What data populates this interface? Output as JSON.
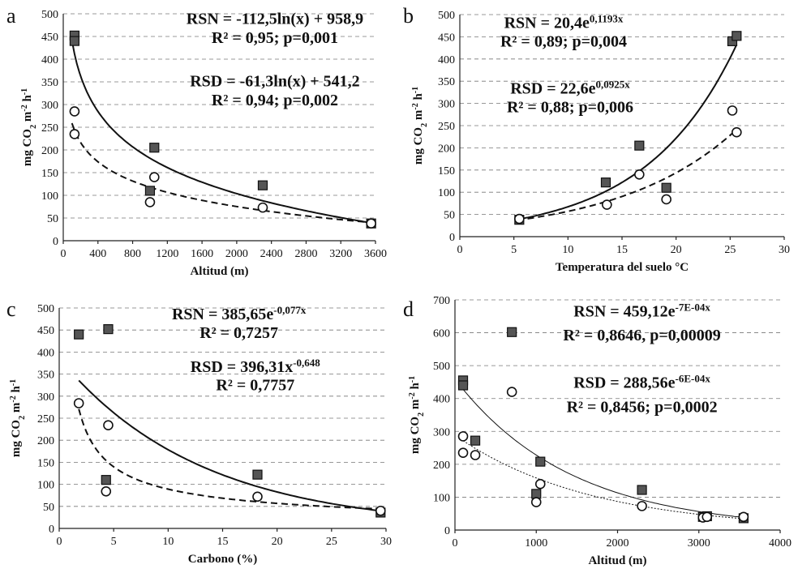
{
  "chart_data": [
    {
      "id": "a",
      "type": "scatter",
      "panel_letter": "a",
      "xlabel": "Altitud (m)",
      "ylabel_html": "mg CO<tspan baseline-shift='sub' font-size='10'>2</tspan> m<tspan baseline-shift='super' font-size='10'>-2</tspan> h<tspan baseline-shift='super' font-size='10'>-1</tspan>",
      "ylabel": "mg CO2 m-2 h-1",
      "xlim": [
        0,
        3600
      ],
      "ylim": [
        0,
        500
      ],
      "xticks": [
        0,
        400,
        800,
        1200,
        1600,
        2000,
        2400,
        2800,
        3200,
        3600
      ],
      "yticks": [
        0,
        50,
        100,
        150,
        200,
        250,
        300,
        350,
        400,
        450,
        500
      ],
      "series": [
        {
          "name": "RSN",
          "marker": "square",
          "points": [
            [
              130,
              452
            ],
            [
              130,
              440
            ],
            [
              1050,
              205
            ],
            [
              1000,
              110
            ],
            [
              2300,
              122
            ],
            [
              3550,
              38
            ]
          ],
          "fit": {
            "kind": "log",
            "a": -112.5,
            "b": 958.9,
            "range": [
              100,
              3550
            ],
            "style": "solid"
          }
        },
        {
          "name": "RSD",
          "marker": "circle",
          "points": [
            [
              130,
              285
            ],
            [
              130,
              235
            ],
            [
              1050,
              140
            ],
            [
              1000,
              85
            ],
            [
              2300,
              73
            ],
            [
              3550,
              38
            ]
          ],
          "fit": {
            "kind": "log",
            "a": -61.3,
            "b": 541.2,
            "range": [
              100,
              3550
            ],
            "style": "dashed"
          }
        }
      ],
      "annotations": [
        {
          "text": "RSN = -112,5ln(x) + 958,9",
          "x": 2440,
          "y": 478
        },
        {
          "text": "R² = 0,95; p=0,001",
          "x": 2440,
          "y": 436
        },
        {
          "text": "RSD = -61,3ln(x) + 541,2",
          "x": 2440,
          "y": 340
        },
        {
          "text": "R² = 0,94; p=0,002",
          "x": 2440,
          "y": 298
        }
      ]
    },
    {
      "id": "b",
      "type": "scatter",
      "panel_letter": "b",
      "xlabel": "Temperatura del suelo °C",
      "ylabel_html": "mg CO<tspan baseline-shift='sub' font-size='10'>2</tspan> m<tspan baseline-shift='super' font-size='10'>-2</tspan> h<tspan baseline-shift='super' font-size='10'>-1</tspan>",
      "ylabel": "mg CO2 m-2 h-1",
      "xlim": [
        0,
        30
      ],
      "ylim": [
        0,
        500
      ],
      "xticks": [
        0,
        5,
        10,
        15,
        20,
        25,
        30
      ],
      "yticks": [
        0,
        50,
        100,
        150,
        200,
        250,
        300,
        350,
        400,
        450,
        500
      ],
      "series": [
        {
          "name": "RSN",
          "marker": "square",
          "points": [
            [
              5.5,
              38
            ],
            [
              13.5,
              122
            ],
            [
              16.6,
              205
            ],
            [
              19.1,
              110
            ],
            [
              25.2,
              440
            ],
            [
              25.6,
              452
            ]
          ],
          "fit": {
            "kind": "exp",
            "a": 20.4,
            "b": 0.1193,
            "range": [
              5.3,
              25.6
            ],
            "style": "solid"
          }
        },
        {
          "name": "RSD",
          "marker": "circle",
          "points": [
            [
              5.5,
              40
            ],
            [
              13.6,
              72
            ],
            [
              16.6,
              140
            ],
            [
              19.1,
              84
            ],
            [
              25.2,
              284
            ],
            [
              25.6,
              235
            ]
          ],
          "fit": {
            "kind": "exp",
            "a": 22.6,
            "b": 0.0925,
            "range": [
              5.3,
              25.6
            ],
            "style": "dashed"
          }
        }
      ],
      "annotations": [
        {
          "text": "RSN = 20,4e",
          "sup": "0,1193x",
          "x": 9.6,
          "y": 470
        },
        {
          "text": "R² = 0,89; p=0,004",
          "x": 9.6,
          "y": 428
        },
        {
          "text": "RSD = 22,6e",
          "sup": "0,0925x",
          "x": 10.2,
          "y": 322
        },
        {
          "text": "R² = 0,88; p=0,006",
          "x": 10.2,
          "y": 280
        }
      ]
    },
    {
      "id": "c",
      "type": "scatter",
      "panel_letter": "c",
      "xlabel": "Carbono (%)",
      "ylabel_html": "mg CO<tspan baseline-shift='sub' font-size='10'>2</tspan> m<tspan baseline-shift='super' font-size='10'>-2</tspan> h<tspan baseline-shift='super' font-size='10'>-1</tspan>",
      "ylabel": "mg CO2 m-2 h-1",
      "xlim": [
        0,
        30
      ],
      "ylim": [
        0,
        500
      ],
      "xticks": [
        0,
        5,
        10,
        15,
        20,
        25,
        30
      ],
      "yticks": [
        0,
        50,
        100,
        150,
        200,
        250,
        300,
        350,
        400,
        450,
        500
      ],
      "series": [
        {
          "name": "RSN",
          "marker": "square",
          "points": [
            [
              1.8,
              440
            ],
            [
              4.5,
              452
            ],
            [
              4.3,
              110
            ],
            [
              18.2,
              122
            ],
            [
              29.5,
              36
            ]
          ],
          "fit": {
            "kind": "exp",
            "a": 385.65,
            "b": -0.077,
            "range": [
              1.8,
              29.5
            ],
            "style": "solid"
          }
        },
        {
          "name": "RSD",
          "marker": "circle",
          "points": [
            [
              1.8,
              284
            ],
            [
              4.5,
              234
            ],
            [
              4.3,
              84
            ],
            [
              18.2,
              72
            ],
            [
              29.5,
              40
            ]
          ],
          "fit": {
            "kind": "power",
            "a": 396.31,
            "b": -0.648,
            "range": [
              1.8,
              29.5
            ],
            "style": "dashed"
          }
        }
      ],
      "annotations": [
        {
          "text": "RSN = 385,65e",
          "sup": "-0,077x",
          "x": 16.5,
          "y": 474
        },
        {
          "text": "R² = 0,7257",
          "x": 16.5,
          "y": 432
        },
        {
          "text": "RSD = 396,31x",
          "sup": "-0,648",
          "x": 18.0,
          "y": 355
        },
        {
          "text": "R² = 0,7757",
          "x": 18.0,
          "y": 313
        }
      ]
    },
    {
      "id": "d",
      "type": "scatter",
      "panel_letter": "d",
      "xlabel": "Altitud (m)",
      "ylabel_html": "mg CO<tspan baseline-shift='sub' font-size='10'>2</tspan> m<tspan baseline-shift='super' font-size='10'>-2</tspan> h<tspan baseline-shift='super' font-size='10'>-1</tspan>",
      "ylabel": "mg CO2 m-2 h-1",
      "xlim": [
        0,
        4000
      ],
      "ylim": [
        0,
        700
      ],
      "xticks": [
        0,
        1000,
        2000,
        3000,
        4000
      ],
      "yticks": [
        0,
        100,
        200,
        300,
        400,
        500,
        600,
        700
      ],
      "series": [
        {
          "name": "RSN",
          "marker": "square",
          "points": [
            [
              100,
              455
            ],
            [
              100,
              440
            ],
            [
              250,
              272
            ],
            [
              700,
              602
            ],
            [
              1050,
              208
            ],
            [
              1000,
              110
            ],
            [
              2300,
              122
            ],
            [
              3050,
              40
            ],
            [
              3100,
              42
            ],
            [
              3550,
              36
            ]
          ],
          "fit": {
            "kind": "exp",
            "a": 459.12,
            "b": -0.0007,
            "range": [
              100,
              3550
            ],
            "style": "thin-solid"
          }
        },
        {
          "name": "RSD",
          "marker": "circle",
          "points": [
            [
              100,
              285
            ],
            [
              100,
              235
            ],
            [
              250,
              228
            ],
            [
              700,
              420
            ],
            [
              1050,
              140
            ],
            [
              1000,
              85
            ],
            [
              2300,
              73
            ],
            [
              3050,
              38
            ],
            [
              3100,
              40
            ],
            [
              3550,
              40
            ]
          ],
          "fit": {
            "kind": "exp",
            "a": 288.56,
            "b": -0.0006,
            "range": [
              100,
              3550
            ],
            "style": "dotted"
          }
        }
      ],
      "annotations": [
        {
          "text": "RSN = 459,12e",
          "sup": "-7E-04x",
          "x": 2300,
          "y": 650
        },
        {
          "text": "R² = 0,8646, p=0,00009",
          "x": 2300,
          "y": 577
        },
        {
          "text": "RSD = 288,56e",
          "sup": "-6E-04x",
          "x": 2300,
          "y": 432
        },
        {
          "text": "R² = 0,8456; p=0,0002",
          "x": 2300,
          "y": 359
        }
      ]
    }
  ]
}
